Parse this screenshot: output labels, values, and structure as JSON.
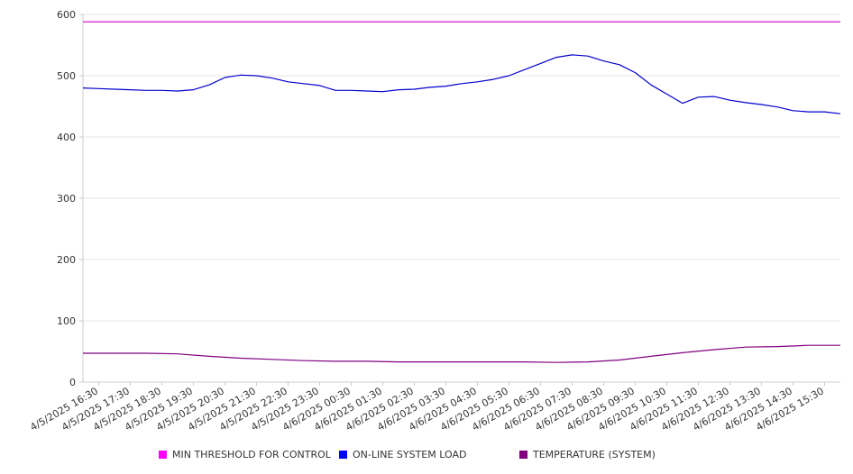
{
  "chart_data": {
    "type": "line",
    "title": "",
    "xlabel": "",
    "ylabel": "",
    "ylim": [
      0,
      600
    ],
    "y_ticks": [
      "0",
      "100",
      "200",
      "300",
      "400",
      "500",
      "600"
    ],
    "grid": true,
    "legend_position": "bottom",
    "x_ticks": [
      "4/5/2025 16:30",
      "4/5/2025 17:30",
      "4/5/2025 18:30",
      "4/5/2025 19:30",
      "4/5/2025 20:30",
      "4/5/2025 21:30",
      "4/5/2025 22:30",
      "4/5/2025 23:30",
      "4/6/2025 00:30",
      "4/6/2025 01:30",
      "4/6/2025 02:30",
      "4/6/2025 03:30",
      "4/6/2025 04:30",
      "4/6/2025 05:30",
      "4/6/2025 06:30",
      "4/6/2025 07:30",
      "4/6/2025 08:30",
      "4/6/2025 09:30",
      "4/6/2025 10:30",
      "4/6/2025 11:30",
      "4/6/2025 12:30",
      "4/6/2025 13:30",
      "4/6/2025 14:30",
      "4/6/2025 15:30"
    ],
    "series": [
      {
        "name": "MIN THRESHOLD FOR CONTROL",
        "color": "#cc00cc",
        "legend_color": "#ff00ff",
        "x": [
          "4/5/2025 16:00",
          "4/6/2025 16:00"
        ],
        "y": [
          588,
          588
        ]
      },
      {
        "name": "ON-LINE SYSTEM LOAD",
        "color": "#0000cc",
        "legend_color": "#0000ff",
        "x": [
          "4/5/2025 16:00",
          "4/5/2025 16:30",
          "4/5/2025 17:00",
          "4/5/2025 17:30",
          "4/5/2025 18:00",
          "4/5/2025 18:30",
          "4/5/2025 19:00",
          "4/5/2025 19:30",
          "4/5/2025 20:00",
          "4/5/2025 20:30",
          "4/5/2025 21:00",
          "4/5/2025 21:30",
          "4/5/2025 22:00",
          "4/5/2025 22:30",
          "4/5/2025 23:00",
          "4/5/2025 23:30",
          "4/6/2025 00:00",
          "4/6/2025 00:30",
          "4/6/2025 01:00",
          "4/6/2025 01:30",
          "4/6/2025 02:00",
          "4/6/2025 02:30",
          "4/6/2025 03:00",
          "4/6/2025 03:30",
          "4/6/2025 04:00",
          "4/6/2025 04:30",
          "4/6/2025 05:00",
          "4/6/2025 05:30",
          "4/6/2025 06:00",
          "4/6/2025 06:30",
          "4/6/2025 07:00",
          "4/6/2025 07:30",
          "4/6/2025 08:00",
          "4/6/2025 08:30",
          "4/6/2025 09:00",
          "4/6/2025 09:30",
          "4/6/2025 10:00",
          "4/6/2025 10:30",
          "4/6/2025 11:00",
          "4/6/2025 11:30",
          "4/6/2025 12:00",
          "4/6/2025 12:30",
          "4/6/2025 13:00",
          "4/6/2025 13:30",
          "4/6/2025 14:00",
          "4/6/2025 14:30",
          "4/6/2025 15:00",
          "4/6/2025 15:30",
          "4/6/2025 16:00"
        ],
        "y": [
          480,
          479,
          478,
          477,
          476,
          476,
          475,
          477,
          485,
          497,
          501,
          500,
          496,
          490,
          487,
          484,
          476,
          476,
          475,
          474,
          477,
          478,
          481,
          483,
          487,
          490,
          494,
          500,
          510,
          520,
          530,
          534,
          532,
          524,
          518,
          505,
          485,
          470,
          455,
          465,
          466,
          460,
          456,
          453,
          449,
          443,
          441,
          441,
          438
        ]
      },
      {
        "name": "TEMPERATURE (SYSTEM)",
        "color": "#800080",
        "legend_color": "#800080",
        "x": [
          "4/5/2025 16:00",
          "4/5/2025 18:00",
          "4/5/2025 19:00",
          "4/5/2025 20:00",
          "4/5/2025 21:00",
          "4/5/2025 22:00",
          "4/5/2025 23:00",
          "4/6/2025 00:00",
          "4/6/2025 01:00",
          "4/6/2025 02:00",
          "4/6/2025 03:00",
          "4/6/2025 04:00",
          "4/6/2025 05:00",
          "4/6/2025 06:00",
          "4/6/2025 07:00",
          "4/6/2025 08:00",
          "4/6/2025 09:00",
          "4/6/2025 10:00",
          "4/6/2025 11:00",
          "4/6/2025 12:00",
          "4/6/2025 13:00",
          "4/6/2025 14:00",
          "4/6/2025 15:00",
          "4/6/2025 16:00"
        ],
        "y": [
          47,
          47,
          46,
          42,
          39,
          37,
          35,
          34,
          34,
          33,
          33,
          33,
          33,
          33,
          32,
          33,
          36,
          42,
          48,
          53,
          57,
          58,
          60,
          60
        ]
      }
    ]
  }
}
